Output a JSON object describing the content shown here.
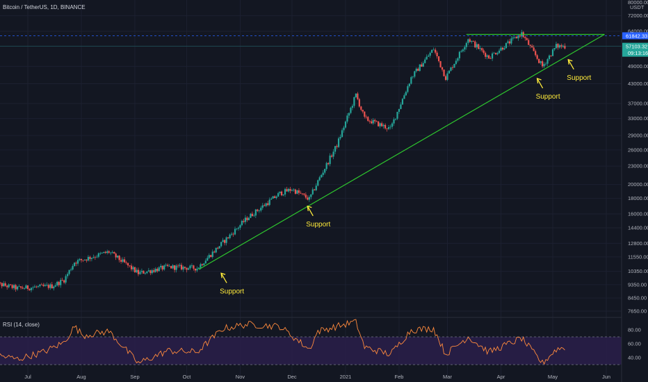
{
  "header": {
    "symbol_title": "Bitcoin / TetherUS, 1D, BINANCE",
    "rsi_title": "RSI (14, close)"
  },
  "colors": {
    "background": "#131722",
    "up": "#26a69a",
    "down": "#ef5350",
    "trendline": "#2ec72e",
    "annotation": "#ffeb3b",
    "rsi_line": "#ff8a3d",
    "rsi_band": "#2a1f4a",
    "price_badge": "#26a69a",
    "high_badge": "#2962ff"
  },
  "chart_data": [
    {
      "type": "candlestick",
      "title": "Bitcoin / TetherUS, 1D, BINANCE",
      "y_scale": "log",
      "y_unit_label": "USDT",
      "y_ticks": [
        "72000.00",
        "64000.00",
        "57103.32",
        "49000.00",
        "43000.00",
        "37000.00",
        "33000.00",
        "29000.00",
        "26000.00",
        "23000.00",
        "20000.00",
        "18000.00",
        "16000.00",
        "14400.00",
        "12800.00",
        "11550.00",
        "10350.00",
        "9350.00",
        "8450.00",
        "7650.00"
      ],
      "y_tick_values": [
        72000,
        64000,
        57103.32,
        49000,
        43000,
        37000,
        33000,
        29000,
        26000,
        23000,
        20000,
        18000,
        16000,
        14400,
        12800,
        11550,
        10350,
        9350,
        8450,
        7650
      ],
      "x_ticks": [
        "Jul",
        "Aug",
        "Sep",
        "Oct",
        "Nov",
        "Dec",
        "2021",
        "Feb",
        "Mar",
        "Apr",
        "May",
        "Jun"
      ],
      "x_tick_months": [
        "2020-07",
        "2020-08",
        "2020-09",
        "2020-10",
        "2020-11",
        "2020-12",
        "2021-01",
        "2021-02",
        "2021-03",
        "2021-04",
        "2021-05",
        "2021-06"
      ],
      "last_price": "57103.32",
      "last_price_value": 57103.32,
      "countdown": "09:13:16",
      "high_level": "61842.33",
      "high_level_value": 61842.33,
      "top_label": "80000.00",
      "trend_color": "up-then-flat",
      "anchors": [
        [
          "2020-06-10",
          9500
        ],
        [
          "2020-06-25",
          9100
        ],
        [
          "2020-07-15",
          9250
        ],
        [
          "2020-07-22",
          9700
        ],
        [
          "2020-07-28",
          11100
        ],
        [
          "2020-08-17",
          12000
        ],
        [
          "2020-09-03",
          10200
        ],
        [
          "2020-09-20",
          10700
        ],
        [
          "2020-10-07",
          10600
        ],
        [
          "2020-10-22",
          12900
        ],
        [
          "2020-11-05",
          15500
        ],
        [
          "2020-11-24",
          18700
        ],
        [
          "2020-12-01",
          19300
        ],
        [
          "2020-12-11",
          17900
        ],
        [
          "2020-12-16",
          20500
        ],
        [
          "2020-12-27",
          27000
        ],
        [
          "2021-01-07",
          39500
        ],
        [
          "2021-01-12",
          33000
        ],
        [
          "2021-01-27",
          30500
        ],
        [
          "2021-02-08",
          45000
        ],
        [
          "2021-02-21",
          56000
        ],
        [
          "2021-02-28",
          45000
        ],
        [
          "2021-03-13",
          60500
        ],
        [
          "2021-03-25",
          52500
        ],
        [
          "2021-04-13",
          63000
        ],
        [
          "2021-04-25",
          49000
        ],
        [
          "2021-05-03",
          57200
        ],
        [
          "2021-05-08",
          57103.32
        ]
      ],
      "trendlines": [
        {
          "name": "ascending-support",
          "from": [
            "2020-10-08",
            10500
          ],
          "to": [
            "2021-05-31",
            62500
          ]
        },
        {
          "name": "horizontal-resistance",
          "from": [
            "2021-03-12",
            62500
          ],
          "to": [
            "2021-05-31",
            62500
          ]
        }
      ],
      "annotations": [
        {
          "text": "Support",
          "date": "2020-10-25",
          "price": 8900
        },
        {
          "text": "Support",
          "date": "2020-12-14",
          "price": 14800
        },
        {
          "text": "Support",
          "date": "2021-04-26",
          "price": 39000
        },
        {
          "text": "Support",
          "date": "2021-05-14",
          "price": 45000
        }
      ]
    },
    {
      "type": "line",
      "title": "RSI (14, close)",
      "y_ticks": [
        "80.00",
        "60.00",
        "40.00"
      ],
      "y_tick_values": [
        80,
        60,
        40
      ],
      "band_upper": 70,
      "band_lower": 30,
      "series": [
        {
          "anchors": [
            [
              "2020-06-10",
              45
            ],
            [
              "2020-06-25",
              38
            ],
            [
              "2020-07-10",
              48
            ],
            [
              "2020-07-22",
              62
            ],
            [
              "2020-07-28",
              85
            ],
            [
              "2020-08-02",
              72
            ],
            [
              "2020-08-17",
              78
            ],
            [
              "2020-09-03",
              32
            ],
            [
              "2020-09-20",
              50
            ],
            [
              "2020-10-07",
              48
            ],
            [
              "2020-10-22",
              82
            ],
            [
              "2020-11-05",
              88
            ],
            [
              "2020-11-24",
              85
            ],
            [
              "2020-12-11",
              52
            ],
            [
              "2020-12-16",
              78
            ],
            [
              "2020-12-27",
              85
            ],
            [
              "2021-01-07",
              92
            ],
            [
              "2021-01-12",
              55
            ],
            [
              "2021-01-27",
              45
            ],
            [
              "2021-02-08",
              80
            ],
            [
              "2021-02-21",
              82
            ],
            [
              "2021-02-28",
              45
            ],
            [
              "2021-03-13",
              70
            ],
            [
              "2021-03-25",
              48
            ],
            [
              "2021-04-13",
              68
            ],
            [
              "2021-04-25",
              32
            ],
            [
              "2021-05-03",
              52
            ],
            [
              "2021-05-08",
              55
            ]
          ]
        }
      ]
    }
  ]
}
